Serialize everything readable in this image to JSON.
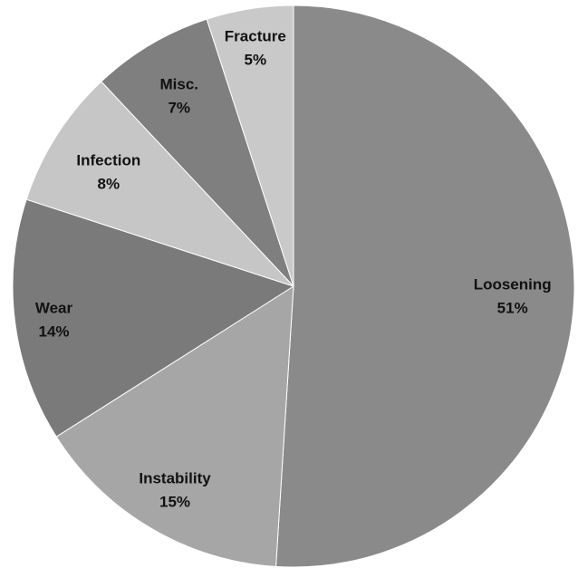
{
  "chart_data": {
    "type": "pie",
    "title": "",
    "start_angle_deg": 0,
    "direction": "clockwise",
    "legend": "none",
    "slices": [
      {
        "name": "Loosening",
        "value": 51,
        "value_label": "51%",
        "color": "#8a8a8a"
      },
      {
        "name": "Instability",
        "value": 15,
        "value_label": "15%",
        "color": "#a6a6a6"
      },
      {
        "name": "Wear",
        "value": 14,
        "value_label": "14%",
        "color": "#7a7a7a"
      },
      {
        "name": "Infection",
        "value": 8,
        "value_label": "8%",
        "color": "#c6c6c6"
      },
      {
        "name": "Misc.",
        "value": 7,
        "value_label": "7%",
        "color": "#7f7f7f"
      },
      {
        "name": "Fracture",
        "value": 5,
        "value_label": "5%",
        "color": "#c9c9c9"
      }
    ]
  }
}
